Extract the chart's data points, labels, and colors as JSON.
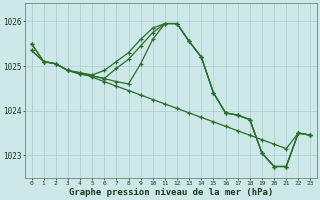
{
  "background_color": "#cce8e8",
  "plot_bg_color": "#cce8e8",
  "grid_color": "#aacccc",
  "line_color": "#2d6e2d",
  "xlabel": "Graphe pression niveau de la mer (hPa)",
  "ylim": [
    1022.5,
    1026.4
  ],
  "xlim": [
    -0.5,
    23.5
  ],
  "yticks": [
    1023,
    1024,
    1025,
    1026
  ],
  "series1": [
    1025.35,
    1025.1,
    1025.05,
    1024.9,
    1024.85,
    1024.75,
    1024.65,
    1024.55,
    1024.45,
    1024.35,
    1024.25,
    1024.15,
    1024.05,
    1023.95,
    1023.85,
    1023.75,
    1023.65,
    1023.55,
    1023.45,
    1023.35,
    1023.25,
    1023.15,
    1023.5,
    1023.45
  ],
  "series2": [
    1025.35,
    1025.1,
    1025.05,
    1024.9,
    1024.85,
    1024.8,
    1024.9,
    1025.1,
    1025.3,
    1025.6,
    1025.85,
    1025.95,
    1025.95,
    1025.55,
    1025.2,
    1024.4,
    1023.95,
    1023.9,
    1023.8,
    1023.05,
    1022.75,
    1022.75,
    1023.5,
    1023.45
  ],
  "series3": [
    1025.5,
    1025.1,
    1025.05,
    1024.9,
    1024.82,
    1024.78,
    1024.72,
    1024.95,
    1025.15,
    1025.45,
    1025.75,
    1025.95,
    1025.95,
    1025.55,
    1025.2,
    1024.4,
    1023.95,
    1023.9,
    1023.8,
    1023.05,
    1022.75,
    1022.75,
    1023.5,
    1023.45
  ],
  "series4": [
    1025.5,
    1025.1,
    1025.05,
    1024.9,
    1024.82,
    1024.78,
    1024.72,
    1024.65,
    1024.6,
    1025.05,
    1025.6,
    1025.95,
    1025.95,
    1025.55,
    1025.2,
    1024.4,
    1023.95,
    1023.9,
    1023.8,
    1023.05,
    1022.75,
    1022.75,
    1023.5,
    1023.45
  ]
}
